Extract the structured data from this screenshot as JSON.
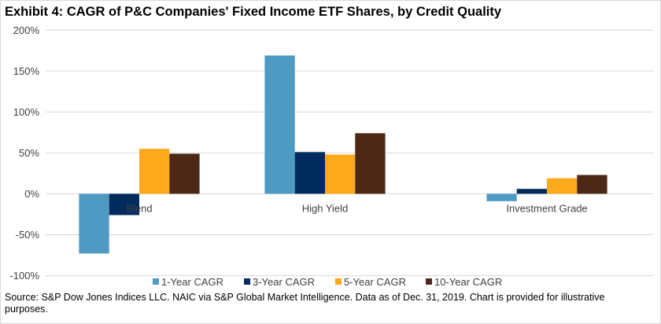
{
  "chart_data": {
    "type": "bar",
    "title": "Exhibit 4: CAGR of P&C Companies' Fixed Income ETF Shares, by Credit Quality",
    "categories": [
      "Blend",
      "High Yield",
      "Investment Grade"
    ],
    "series": [
      {
        "name": "1-Year CAGR",
        "color": "#4f9ac2",
        "values": [
          -73,
          169,
          -9
        ]
      },
      {
        "name": "3-Year CAGR",
        "color": "#002b5c",
        "values": [
          -26,
          51,
          6
        ]
      },
      {
        "name": "5-Year CAGR",
        "color": "#fcaa1b",
        "values": [
          55,
          48,
          19
        ]
      },
      {
        "name": "10-Year CAGR",
        "color": "#4e2817",
        "values": [
          49,
          74,
          23
        ]
      }
    ],
    "ylim": [
      -100,
      200
    ],
    "yticks": [
      -100,
      -50,
      0,
      50,
      100,
      150,
      200
    ],
    "ytick_labels": [
      "-100%",
      "-50%",
      "0%",
      "50%",
      "100%",
      "150%",
      "200%"
    ],
    "grid": true,
    "legend": "bottom",
    "xlabel": "",
    "ylabel": ""
  },
  "source": "Source: S&P Dow Jones Indices LLC. NAIC via S&P Global Market Intelligence. Data as of Dec. 31, 2019. Chart is provided for illustrative purposes."
}
